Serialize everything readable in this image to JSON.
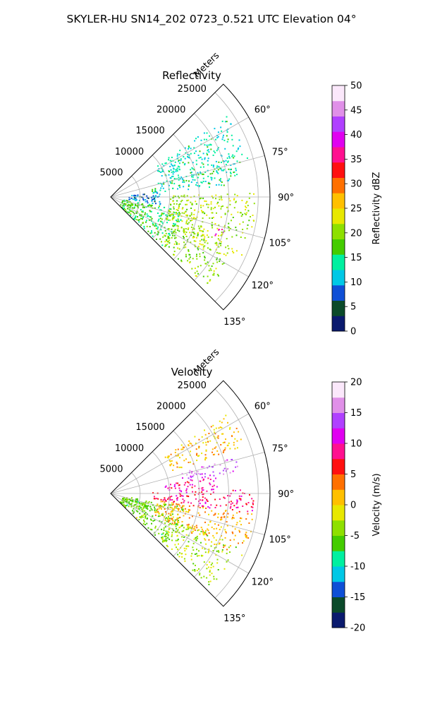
{
  "figure": {
    "suptitle": "SKYLER-HU  SN14_202  0723_0.521 UTC Elevation 04°"
  },
  "chart_data": [
    {
      "type": "heatmap",
      "projection": "polar-sector",
      "title": "Reflectivity",
      "radial_label": "Meters",
      "radial_ticks": [
        5000,
        10000,
        15000,
        20000,
        25000
      ],
      "rmax": 27000,
      "azimuth_range_deg": [
        45,
        135
      ],
      "azimuth_ticks_deg": [
        60,
        75,
        90,
        105,
        120,
        135
      ],
      "grid": true,
      "colorbar": {
        "label": "Reflectivity dBZ",
        "range": [
          0,
          50
        ],
        "ticks": [
          0,
          5,
          10,
          15,
          20,
          25,
          30,
          35,
          40,
          45,
          50
        ],
        "colormap": [
          "#0a1a6e",
          "#0b4a2a",
          "#0f4fd6",
          "#00c8e6",
          "#00f0a0",
          "#44cc00",
          "#8ee000",
          "#e8e800",
          "#ffc000",
          "#ff7000",
          "#ff1010",
          "#ff1090",
          "#e000f0",
          "#b040ff",
          "#e090e8",
          "#fbe8fb"
        ]
      },
      "echo_regions": [
        {
          "az": [
            100,
            133
          ],
          "r": [
            2000,
            12500
          ],
          "value": 16
        },
        {
          "az": [
            88,
            114
          ],
          "r": [
            10000,
            24500
          ],
          "value": 21
        },
        {
          "az": [
            73,
            84
          ],
          "r": [
            7000,
            22000
          ],
          "value": 14
        },
        {
          "az": [
            112,
            133
          ],
          "r": [
            11000,
            23000
          ],
          "value": 20
        },
        {
          "az": [
            55,
            75
          ],
          "r": [
            9000,
            24000
          ],
          "value": 13
        },
        {
          "az": [
            83,
            98
          ],
          "r": [
            3000,
            8500
          ],
          "value": 9
        },
        {
          "az": [
            106,
            110
          ],
          "r": [
            18500,
            20500
          ],
          "value": 37
        }
      ]
    },
    {
      "type": "heatmap",
      "projection": "polar-sector",
      "title": "Velocity",
      "radial_label": "Meters",
      "radial_ticks": [
        5000,
        10000,
        15000,
        20000,
        25000
      ],
      "rmax": 27000,
      "azimuth_range_deg": [
        45,
        135
      ],
      "azimuth_ticks_deg": [
        60,
        75,
        90,
        105,
        120,
        135
      ],
      "grid": true,
      "colorbar": {
        "label": "Velocity (m/s)",
        "range": [
          -20,
          20
        ],
        "ticks": [
          -20,
          -15,
          -10,
          -5,
          0,
          5,
          10,
          15,
          20
        ],
        "colormap": [
          "#0a1a6e",
          "#0b4a2a",
          "#0f4fd6",
          "#00c8e6",
          "#00f0a0",
          "#44cc00",
          "#8ee000",
          "#e8e800",
          "#ffc000",
          "#ff7000",
          "#ff1010",
          "#ff1090",
          "#e000f0",
          "#b040ff",
          "#e090e8",
          "#fbe8fb"
        ]
      },
      "echo_regions": [
        {
          "az": [
            100,
            133
          ],
          "r": [
            2000,
            12500
          ],
          "value": -5
        },
        {
          "az": [
            88,
            98
          ],
          "r": [
            7000,
            24500
          ],
          "value": 8
        },
        {
          "az": [
            98,
            116
          ],
          "r": [
            8000,
            24500
          ],
          "value": 2
        },
        {
          "az": [
            112,
            133
          ],
          "r": [
            11000,
            23000
          ],
          "value": -3
        },
        {
          "az": [
            73,
            80
          ],
          "r": [
            12000,
            22000
          ],
          "value": 14
        },
        {
          "az": [
            80,
            88
          ],
          "r": [
            9000,
            18000
          ],
          "value": 9
        },
        {
          "az": [
            55,
            70
          ],
          "r": [
            11000,
            24000
          ],
          "value": 1
        }
      ]
    }
  ]
}
